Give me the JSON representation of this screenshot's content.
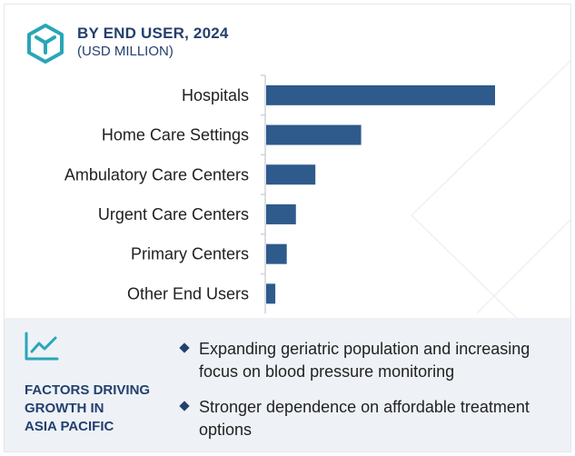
{
  "header": {
    "title": "BY END USER, 2024",
    "subtitle": "(USD MILLION)"
  },
  "chart_data": {
    "type": "bar",
    "orientation": "horizontal",
    "categories": [
      "Hospitals",
      "Home Care Settings",
      "Ambulatory Care Centers",
      "Urgent Care Centers",
      "Primary Centers",
      "Other End Users"
    ],
    "values": [
      100,
      41.5,
      21.5,
      13,
      9,
      4
    ],
    "color": "#2e5a8c",
    "xlabel": "",
    "ylabel": ""
  },
  "factors": {
    "title_lines": [
      "FACTORS DRIVING",
      "GROWTH IN",
      "ASIA PACIFIC"
    ],
    "items": [
      "Expanding geriatric population and increasing focus on blood pressure monitoring",
      "Stronger dependence on affordable treatment options"
    ]
  },
  "colors": {
    "accent": "#24406e",
    "bar": "#2e5a8c",
    "icon": "#2aa6b8",
    "panel": "#eef2f7"
  },
  "icons": {
    "logo": "cube-icon",
    "factors": "trend-line-icon",
    "bullet": "diamond-icon"
  }
}
